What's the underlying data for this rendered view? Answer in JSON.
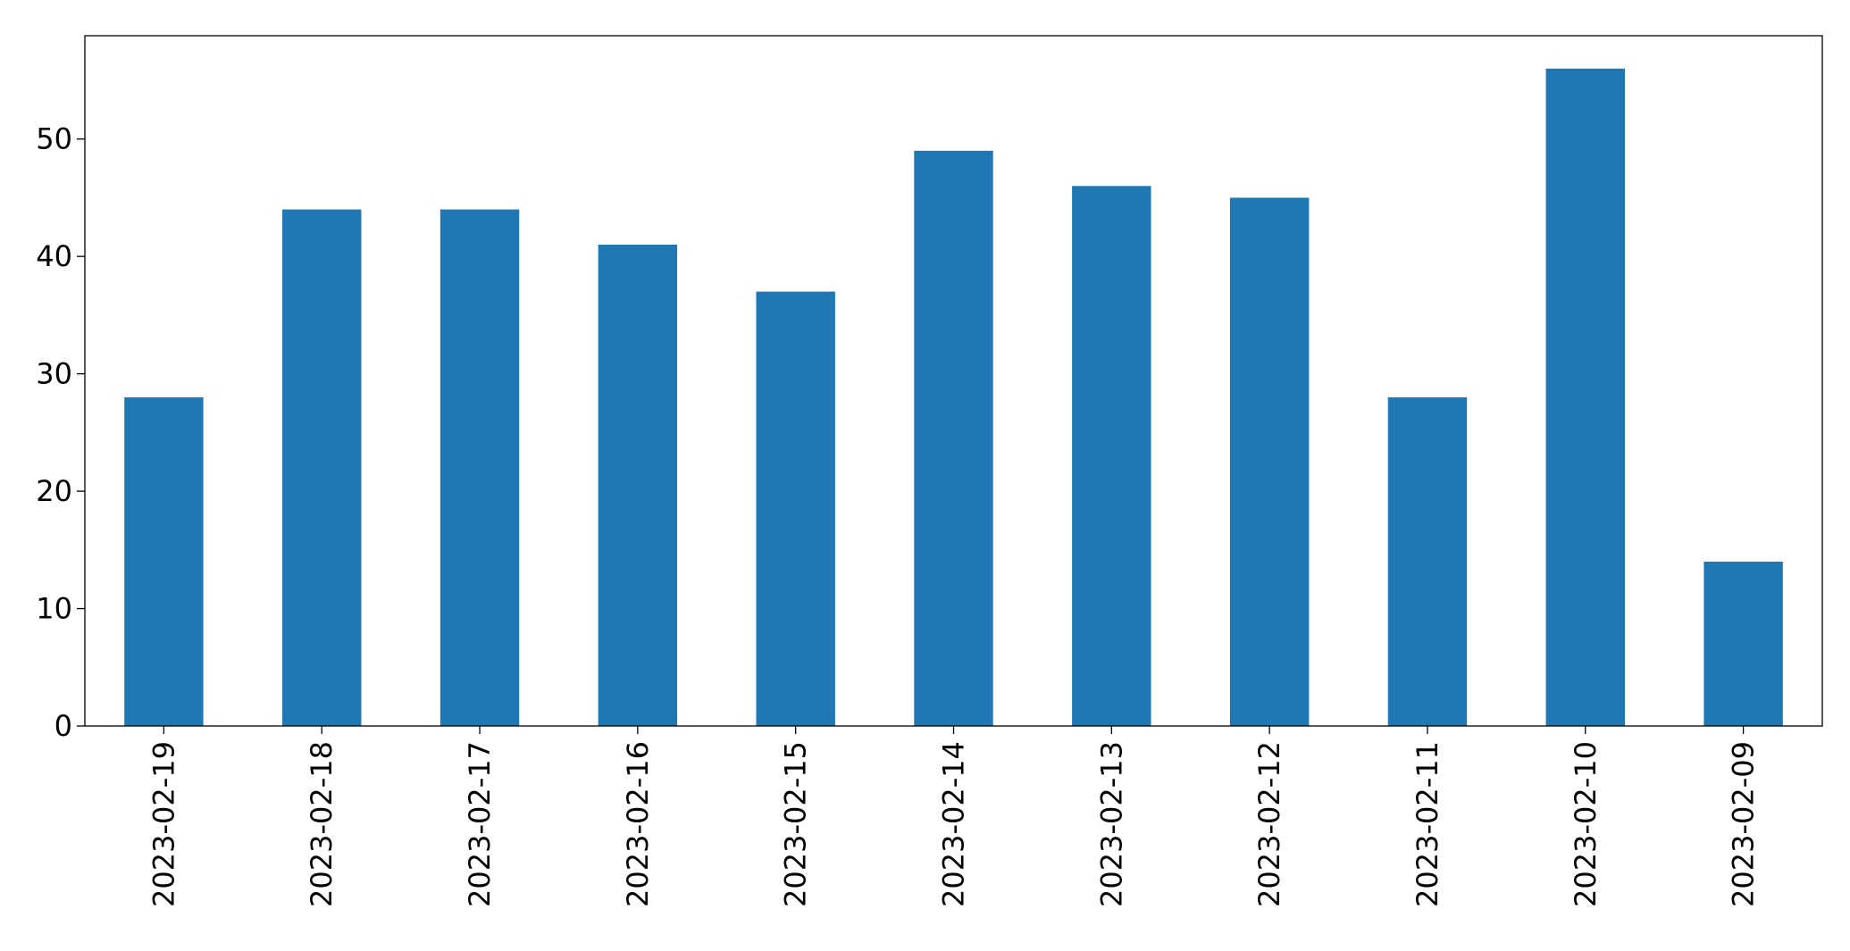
{
  "chart_data": {
    "type": "bar",
    "title": "",
    "xlabel": "",
    "ylabel": "",
    "categories": [
      "2023-02-19",
      "2023-02-18",
      "2023-02-17",
      "2023-02-16",
      "2023-02-15",
      "2023-02-14",
      "2023-02-13",
      "2023-02-12",
      "2023-02-11",
      "2023-02-10",
      "2023-02-09"
    ],
    "values": [
      28,
      44,
      44,
      41,
      37,
      49,
      46,
      45,
      28,
      56,
      14
    ],
    "ylim": [
      0,
      58.8
    ],
    "yticks": [
      0,
      10,
      20,
      30,
      40,
      50
    ],
    "grid": false,
    "legend": "none",
    "bar_color": "#1f77b4",
    "axis_color": "#000000"
  }
}
